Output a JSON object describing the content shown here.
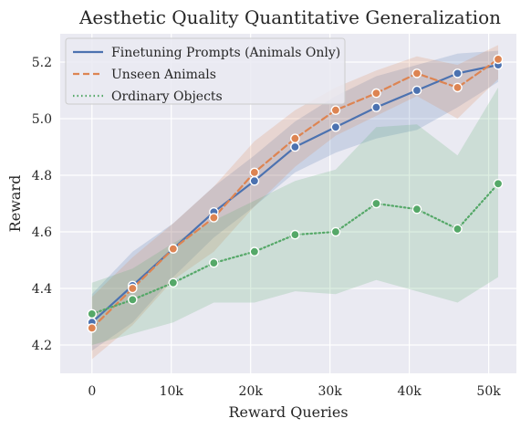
{
  "chart_data": {
    "type": "line",
    "title": "Aesthetic Quality Quantitative Generalization",
    "xlabel": "Reward Queries",
    "ylabel": "Reward",
    "xlim": [
      -4000,
      53500
    ],
    "ylim": [
      4.1,
      5.3
    ],
    "xticks": [
      0,
      10000,
      20000,
      30000,
      40000,
      50000
    ],
    "xtick_labels": [
      "0",
      "10k",
      "20k",
      "30k",
      "40k",
      "50k"
    ],
    "yticks": [
      4.2,
      4.4,
      4.6,
      4.8,
      5.0,
      5.2
    ],
    "ytick_labels": [
      "4.2",
      "4.4",
      "4.6",
      "4.8",
      "5.0",
      "5.2"
    ],
    "grid": true,
    "legend_position": "top-left",
    "x": [
      0,
      5120,
      10240,
      15360,
      20480,
      25600,
      30720,
      35840,
      40960,
      46080,
      51200
    ],
    "series": [
      {
        "name": "Finetuning Prompts (Animals Only)",
        "color": "#4c72b0",
        "line_style": "solid",
        "values": [
          4.28,
          4.41,
          4.54,
          4.67,
          4.78,
          4.9,
          4.97,
          5.04,
          5.1,
          5.16,
          5.19
        ],
        "lower": [
          4.18,
          4.28,
          4.44,
          4.58,
          4.69,
          4.81,
          4.88,
          4.93,
          4.96,
          5.04,
          5.13
        ],
        "upper": [
          4.38,
          4.53,
          4.63,
          4.76,
          4.87,
          4.99,
          5.08,
          5.15,
          5.19,
          5.23,
          5.24
        ]
      },
      {
        "name": "Unseen Animals",
        "color": "#dd8452",
        "line_style": "dashed",
        "values": [
          4.26,
          4.4,
          4.54,
          4.65,
          4.81,
          4.93,
          5.03,
          5.09,
          5.16,
          5.11,
          5.21
        ],
        "lower": [
          4.15,
          4.27,
          4.43,
          4.53,
          4.69,
          4.83,
          4.94,
          5.01,
          5.08,
          5.0,
          5.14
        ],
        "upper": [
          4.37,
          4.51,
          4.63,
          4.76,
          4.92,
          5.03,
          5.11,
          5.17,
          5.22,
          5.19,
          5.26
        ]
      },
      {
        "name": "Ordinary Objects",
        "color": "#55a868",
        "line_style": "dotted",
        "values": [
          4.31,
          4.36,
          4.42,
          4.49,
          4.53,
          4.59,
          4.6,
          4.7,
          4.68,
          4.61,
          4.77
        ],
        "lower": [
          4.2,
          4.24,
          4.28,
          4.35,
          4.35,
          4.39,
          4.38,
          4.43,
          4.39,
          4.35,
          4.44
        ],
        "upper": [
          4.42,
          4.47,
          4.56,
          4.64,
          4.71,
          4.78,
          4.82,
          4.97,
          4.98,
          4.87,
          5.11
        ]
      }
    ]
  }
}
